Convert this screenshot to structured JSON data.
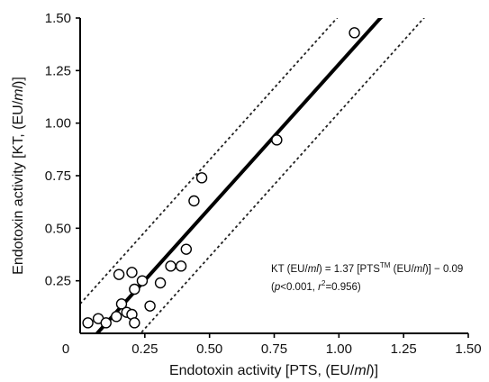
{
  "chart_data": {
    "type": "scatter",
    "xlabel": "Endotoxin activity [PTS, (EU/",
    "xlabel_ml": "ml",
    "xlabel_end": ")]",
    "ylabel": "Endotoxin activity [KT, (EU/",
    "ylabel_ml": "ml",
    "ylabel_end": ")]",
    "xlim": [
      0,
      1.5
    ],
    "ylim": [
      0,
      1.5
    ],
    "x_ticks": [
      0,
      0.25,
      0.5,
      0.75,
      1.0,
      1.25,
      1.5
    ],
    "x_tick_labels": [
      "0",
      "0.25",
      "0.50",
      "0.75",
      "1.00",
      "1.25",
      "1.50"
    ],
    "y_ticks": [
      0.25,
      0.5,
      0.75,
      1.0,
      1.25,
      1.5
    ],
    "y_tick_labels": [
      "0.25",
      "0.50",
      "0.75",
      "1.00",
      "1.25",
      "1.50"
    ],
    "grid": false,
    "points": [
      {
        "x": 0.03,
        "y": 0.05
      },
      {
        "x": 0.07,
        "y": 0.07
      },
      {
        "x": 0.1,
        "y": 0.05
      },
      {
        "x": 0.14,
        "y": 0.08
      },
      {
        "x": 0.15,
        "y": 0.28
      },
      {
        "x": 0.16,
        "y": 0.14
      },
      {
        "x": 0.18,
        "y": 0.1
      },
      {
        "x": 0.2,
        "y": 0.29
      },
      {
        "x": 0.2,
        "y": 0.09
      },
      {
        "x": 0.21,
        "y": 0.21
      },
      {
        "x": 0.21,
        "y": 0.05
      },
      {
        "x": 0.24,
        "y": 0.25
      },
      {
        "x": 0.27,
        "y": 0.13
      },
      {
        "x": 0.31,
        "y": 0.24
      },
      {
        "x": 0.35,
        "y": 0.32
      },
      {
        "x": 0.39,
        "y": 0.32
      },
      {
        "x": 0.41,
        "y": 0.4
      },
      {
        "x": 0.44,
        "y": 0.63
      },
      {
        "x": 0.47,
        "y": 0.74
      },
      {
        "x": 0.76,
        "y": 0.92
      },
      {
        "x": 1.06,
        "y": 1.43
      }
    ],
    "regression": {
      "slope": 1.37,
      "intercept": -0.09
    },
    "confidence_band_offset": 0.23,
    "annotation": {
      "eq_prefix": "KT (EU/",
      "ml": "ml",
      "eq_mid": ") = 1.37 [PTS",
      "tm": "TM",
      "eq_mid2": " (EU/",
      "eq_end": ")] − 0.09",
      "paren_open": "(",
      "p": "p",
      "p_val": "<0.001, ",
      "r": "r",
      "r_exp": "2",
      "r_val": "=0.956)"
    }
  }
}
